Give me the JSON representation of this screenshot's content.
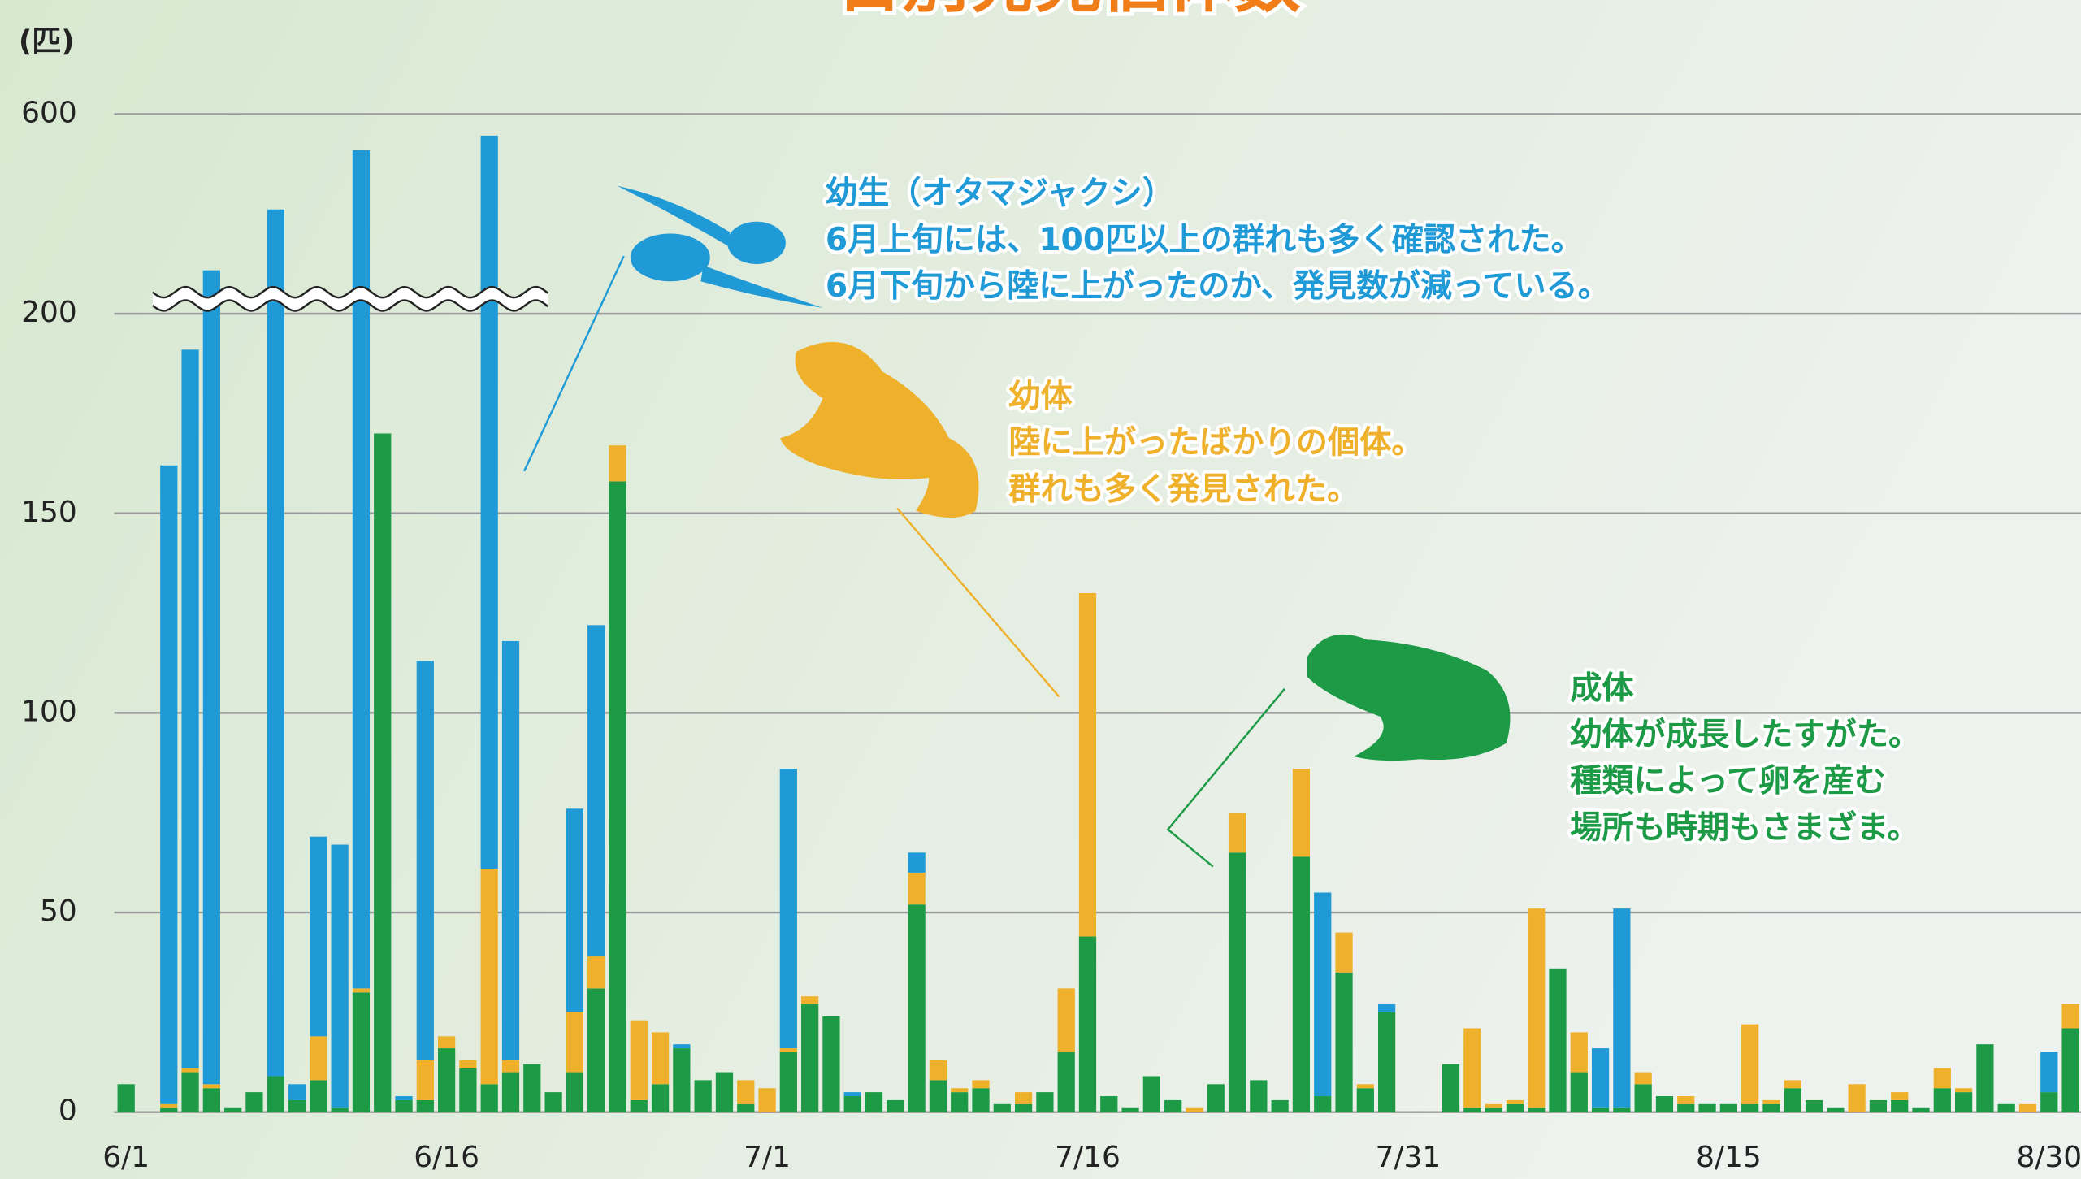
{
  "chart_data": {
    "type": "stacked-bar",
    "title": "日別発見個体数",
    "y_label": "(匹)",
    "categories": [
      "6/1",
      null,
      null,
      null,
      null,
      null,
      null,
      null,
      null,
      null,
      null,
      null,
      null,
      null,
      null,
      "6/16",
      null,
      null,
      null,
      null,
      null,
      null,
      null,
      null,
      null,
      null,
      null,
      null,
      null,
      null,
      "7/1",
      null,
      null,
      null,
      null,
      null,
      null,
      null,
      null,
      null,
      null,
      null,
      null,
      null,
      null,
      "7/16",
      null,
      null,
      null,
      null,
      null,
      null,
      null,
      null,
      null,
      null,
      null,
      null,
      null,
      null,
      "7/31",
      null,
      null,
      null,
      null,
      null,
      null,
      null,
      null,
      null,
      null,
      null,
      null,
      null,
      null,
      "8/15",
      null,
      null,
      null,
      null,
      null,
      null,
      null,
      null,
      null,
      null,
      null,
      null,
      null,
      null,
      "8/30",
      null
    ],
    "series": [
      {
        "name": "成体",
        "color": "#1c9a46",
        "values": [
          7,
          0,
          1,
          10,
          6,
          1,
          5,
          9,
          3,
          8,
          1,
          30,
          170,
          3,
          3,
          16,
          11,
          7,
          10,
          12,
          5,
          10,
          31,
          158,
          3,
          7,
          16,
          8,
          10,
          2,
          0,
          15,
          27,
          24,
          4,
          5,
          3,
          52,
          8,
          5,
          6,
          2,
          2,
          5,
          15,
          44,
          4,
          1,
          9,
          3,
          0,
          7,
          65,
          8,
          3,
          64,
          4,
          35,
          6,
          25,
          0,
          0,
          12,
          1,
          1,
          2,
          1,
          36,
          10,
          1,
          1,
          7,
          4,
          2,
          2,
          2,
          2,
          2,
          6,
          3,
          1,
          0,
          3,
          3,
          1,
          6,
          5,
          17,
          2,
          0,
          5,
          21
        ]
      },
      {
        "name": "幼体",
        "color": "#efb12b",
        "values": [
          0,
          0,
          1,
          1,
          1,
          0,
          0,
          0,
          0,
          11,
          0,
          1,
          0,
          0,
          10,
          3,
          2,
          54,
          3,
          0,
          0,
          15,
          8,
          9,
          20,
          13,
          0,
          0,
          0,
          6,
          6,
          1,
          2,
          0,
          0,
          0,
          0,
          8,
          5,
          1,
          2,
          0,
          3,
          0,
          16,
          86,
          0,
          0,
          0,
          0,
          1,
          0,
          10,
          0,
          0,
          22,
          0,
          10,
          1,
          0,
          0,
          0,
          0,
          20,
          1,
          1,
          50,
          0,
          10,
          0,
          0,
          3,
          0,
          2,
          0,
          0,
          20,
          1,
          2,
          0,
          0,
          7,
          0,
          2,
          0,
          5,
          1,
          0,
          0,
          2,
          0,
          6
        ]
      },
      {
        "name": "幼生（オタマジャクシ）",
        "color": "#1f9ad6",
        "values": [
          0,
          0,
          160,
          180,
          280,
          0,
          0,
          400,
          4,
          50,
          66,
          497,
          0,
          1,
          100,
          0,
          0,
          496,
          105,
          0,
          0,
          51,
          83,
          0,
          0,
          0,
          1,
          0,
          0,
          0,
          0,
          70,
          0,
          0,
          1,
          0,
          0,
          5,
          0,
          0,
          0,
          0,
          0,
          0,
          0,
          0,
          0,
          0,
          0,
          0,
          0,
          0,
          0,
          0,
          0,
          0,
          51,
          0,
          0,
          2,
          0,
          0,
          0,
          0,
          0,
          0,
          0,
          0,
          0,
          15,
          50,
          0,
          0,
          0,
          0,
          0,
          0,
          0,
          0,
          0,
          0,
          0,
          0,
          0,
          0,
          0,
          0,
          0,
          0,
          0,
          10,
          0
        ]
      }
    ],
    "annotations": [
      [
        "幼体が成長したすがた。",
        "種類によって卵を産む",
        "場所も時期もさまざま。"
      ],
      [
        "陸に上がったばかりの個体。",
        "群れも多く発見された。"
      ],
      [
        "6月上旬には、100匹以上の群れも多く確認された。",
        "6月下旬から陸に上がったのか、発見数が減っている。"
      ]
    ],
    "ylim": [
      0,
      600
    ],
    "yticks": [
      0,
      50,
      100,
      150,
      200,
      600
    ],
    "axis_break": true,
    "grid": true
  }
}
